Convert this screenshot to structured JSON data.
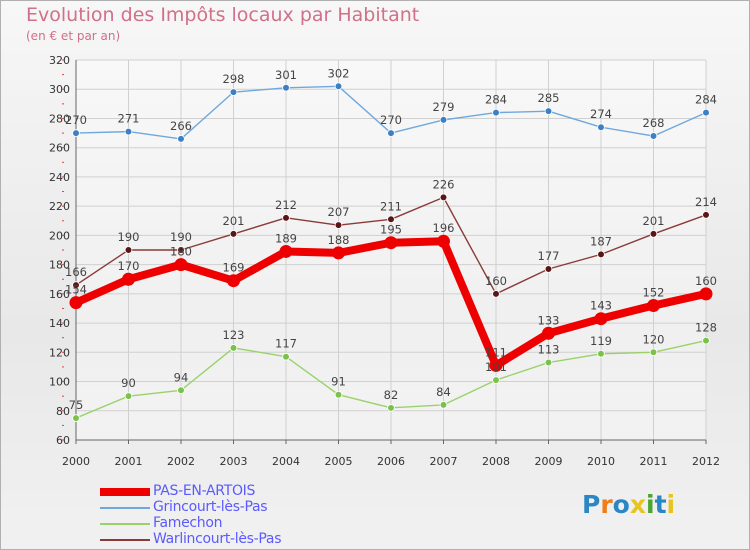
{
  "title": "Evolution des Impôts locaux par Habitant",
  "subtitle": "(en € et par an)",
  "logo": {
    "text": "Proxiti",
    "letter_colors": [
      "#2b87c4",
      "#f07c1a",
      "#2b87c4",
      "#e8c51e",
      "#4aa62e",
      "#2b87c4",
      "#e8c51e"
    ]
  },
  "chart_data": {
    "type": "line",
    "title": "Evolution des Impôts locaux par Habitant",
    "subtitle": "(en € et par an)",
    "xlabel": "",
    "ylabel": "",
    "ylim": [
      60,
      320
    ],
    "yticks": [
      60,
      80,
      100,
      120,
      140,
      160,
      180,
      200,
      220,
      240,
      260,
      280,
      300,
      320
    ],
    "categories": [
      "2000",
      "2001",
      "2002",
      "2003",
      "2004",
      "2005",
      "2006",
      "2007",
      "2008",
      "2009",
      "2010",
      "2011",
      "2012"
    ],
    "grid": true,
    "legend_position": "bottom-left",
    "series": [
      {
        "name": "Grincourt-lès-Pas",
        "color": "#6fa8dc",
        "marker": "#3d7fc4",
        "values": [
          270,
          271,
          266,
          298,
          301,
          302,
          270,
          279,
          284,
          285,
          274,
          268,
          284
        ],
        "label_pos": "above"
      },
      {
        "name": "Warlincourt-lès-Pas",
        "color": "#8b3a3a",
        "marker": "#5a1616",
        "values": [
          166,
          190,
          190,
          201,
          212,
          207,
          211,
          226,
          160,
          177,
          187,
          201,
          214
        ],
        "label_pos": "above"
      },
      {
        "name": "Famechon",
        "color": "#9ad26a",
        "marker": "#7bc24a",
        "values": [
          75,
          90,
          94,
          123,
          117,
          91,
          82,
          84,
          101,
          113,
          119,
          120,
          128
        ],
        "label_pos": "above"
      },
      {
        "name": "PAS-EN-ARTOIS",
        "color": "#ee0000",
        "marker": "#ee0000",
        "values": [
          154,
          170,
          180,
          169,
          189,
          188,
          195,
          196,
          111,
          133,
          143,
          152,
          160
        ],
        "label_pos": "above",
        "bold": true
      }
    ]
  },
  "legend": {
    "items": [
      {
        "label": "PAS-EN-ARTOIS",
        "color": "#ee0000",
        "bold": true
      },
      {
        "label": "Grincourt-lès-Pas",
        "color": "#6fa8dc",
        "bold": false
      },
      {
        "label": "Famechon",
        "color": "#9ad26a",
        "bold": false
      },
      {
        "label": "Warlincourt-lès-Pas",
        "color": "#8b3a3a",
        "bold": false
      }
    ]
  }
}
